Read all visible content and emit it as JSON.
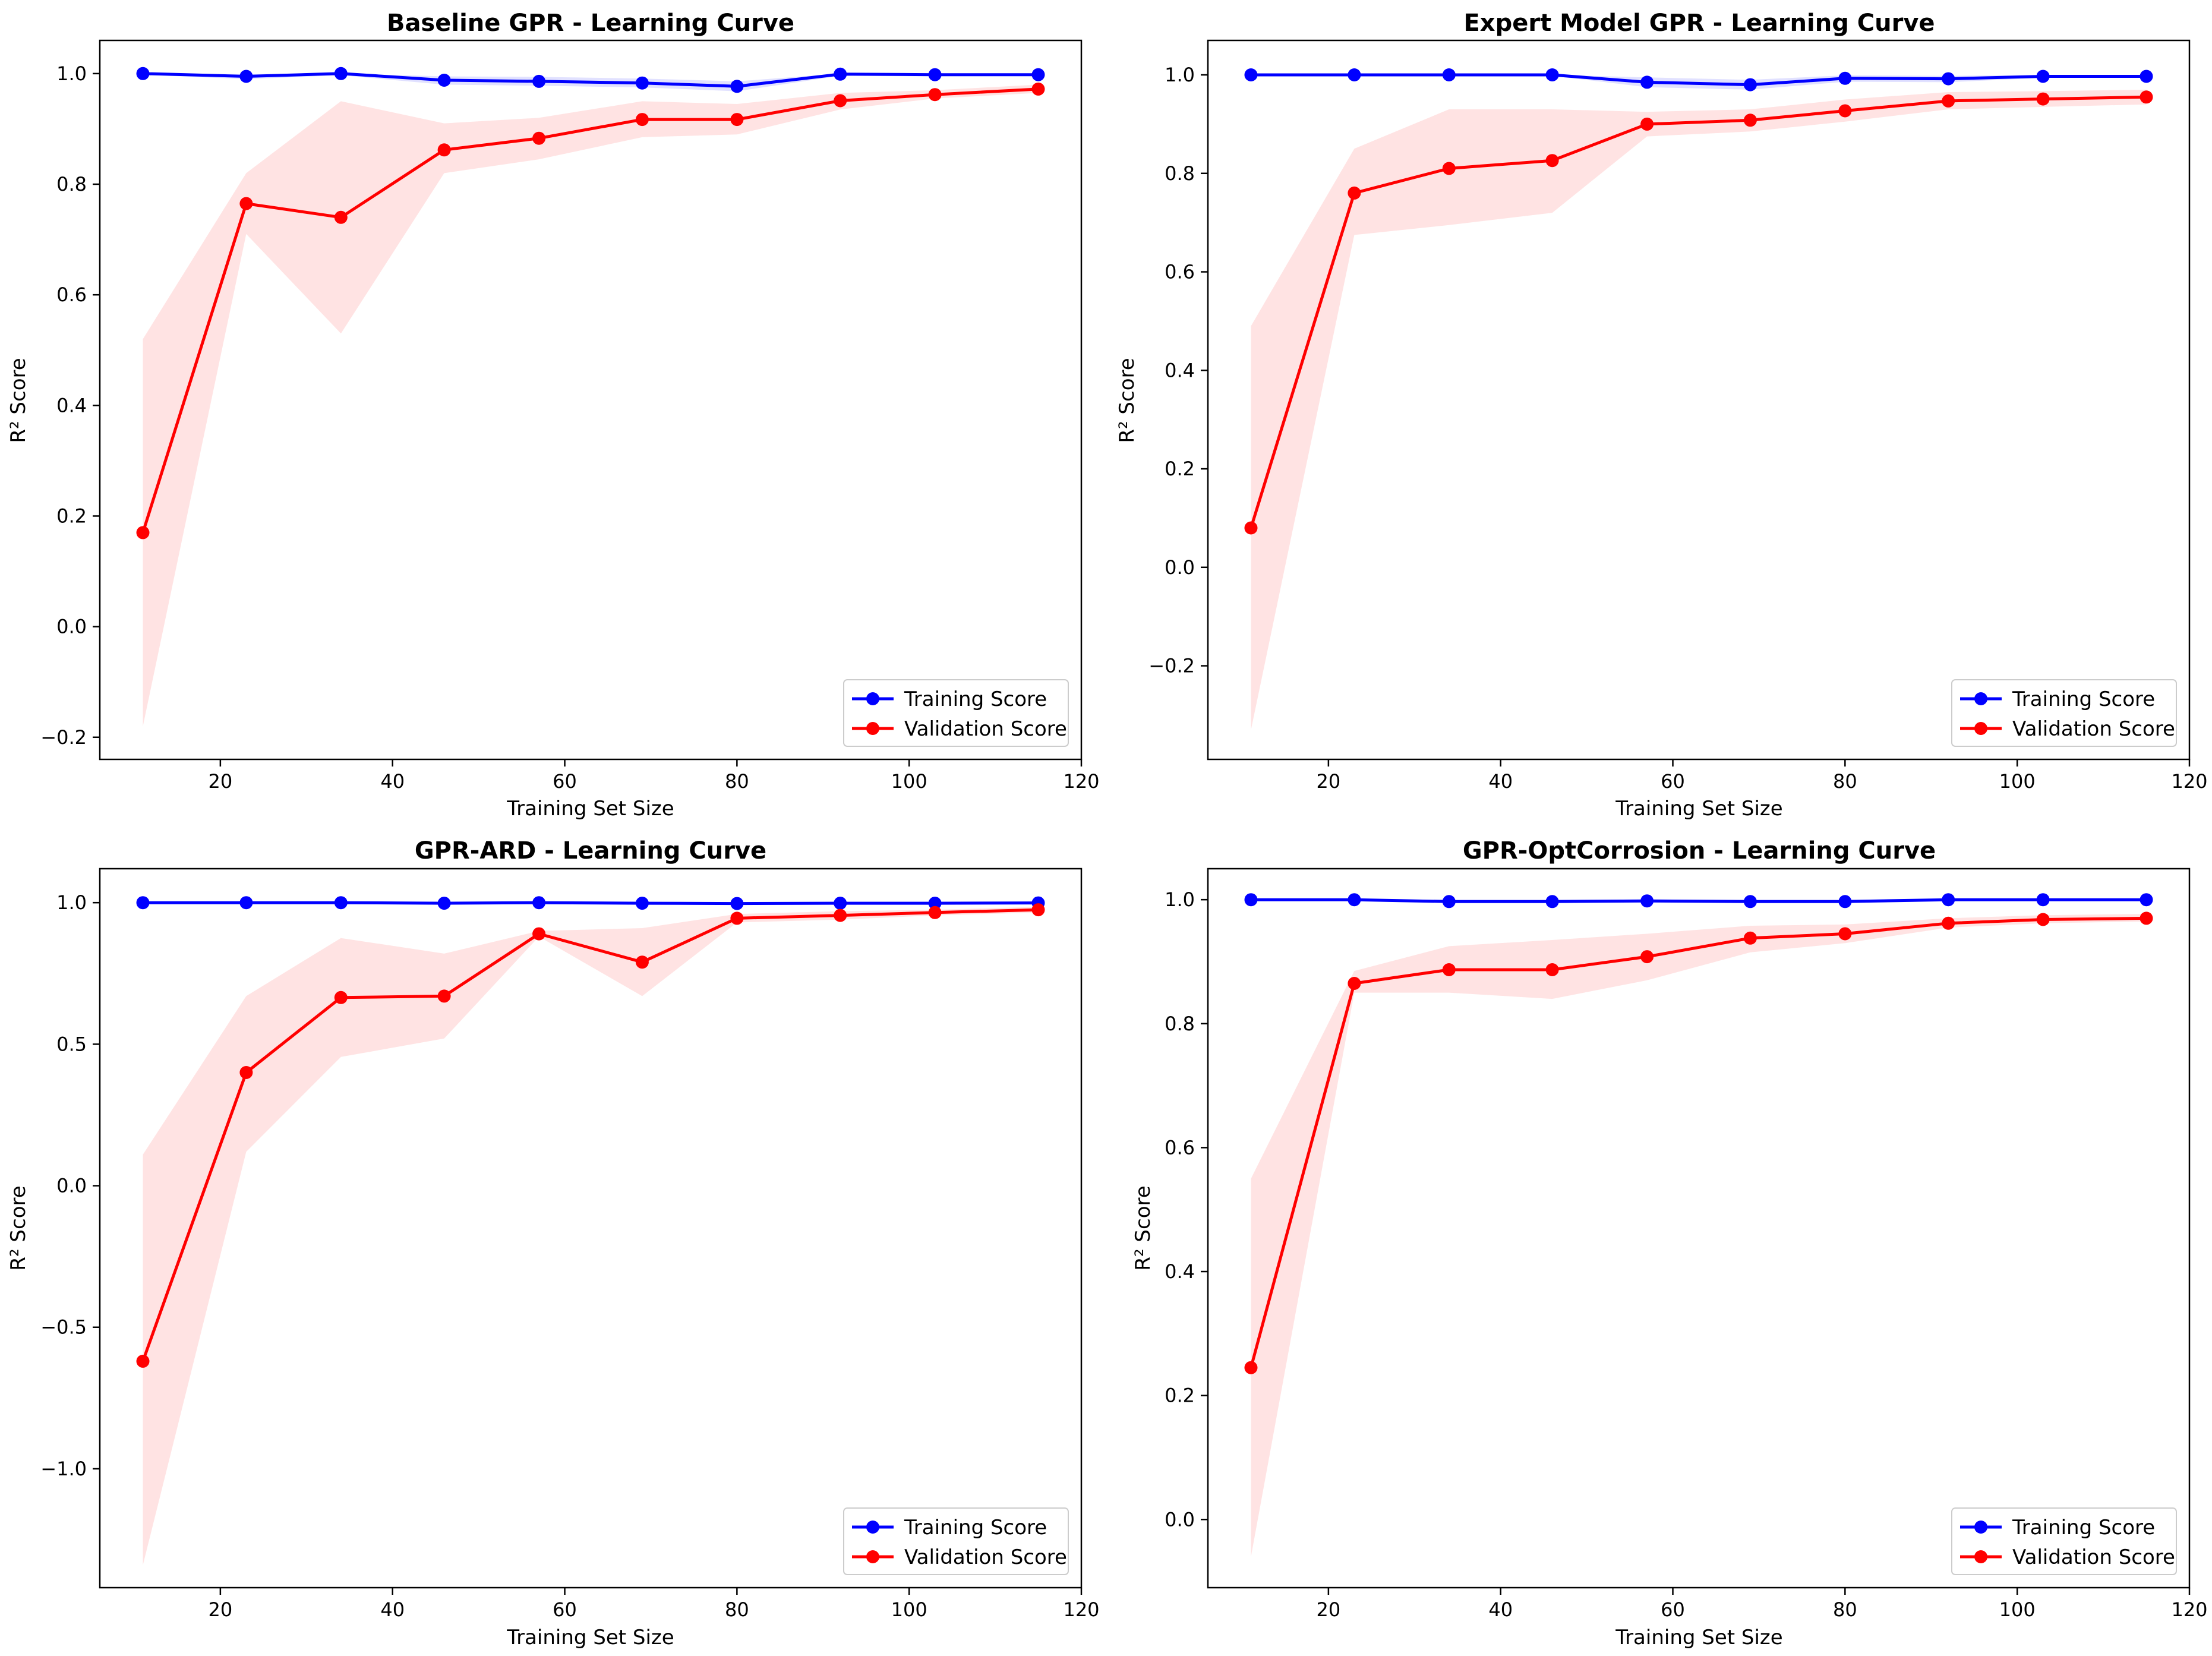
{
  "figure": {
    "background": "#ffffff"
  },
  "colors": {
    "training": "#0000ff",
    "validation": "#ff0000",
    "training_band": "#c8c8ff",
    "validation_band": "#ffc8c8"
  },
  "chart_data": [
    {
      "type": "line",
      "title": "Baseline GPR - Learning Curve",
      "xlabel": "Training Set Size",
      "ylabel": "R² Score",
      "xlim": [
        6,
        120
      ],
      "ylim": [
        -0.24,
        1.06
      ],
      "xticks": [
        20,
        40,
        60,
        80,
        100,
        120
      ],
      "xtick_labels": [
        "20",
        "40",
        "60",
        "80",
        "100",
        "120"
      ],
      "yticks": [
        -0.2,
        0.0,
        0.2,
        0.4,
        0.6,
        0.8,
        1.0
      ],
      "ytick_labels": [
        "−0.2",
        "0.0",
        "0.2",
        "0.4",
        "0.6",
        "0.8",
        "1.0"
      ],
      "legend_location": "lower-right",
      "x": [
        11,
        23,
        34,
        46,
        57,
        69,
        80,
        92,
        103,
        115
      ],
      "series": [
        {
          "name": "Training Score",
          "color": "#0000ff",
          "values": [
            1.0,
            0.995,
            1.0,
            0.988,
            0.986,
            0.983,
            0.977,
            0.999,
            0.998,
            0.998
          ],
          "band_lower": [
            0.998,
            0.99,
            0.997,
            0.98,
            0.978,
            0.975,
            0.968,
            0.996,
            0.995,
            0.996
          ],
          "band_upper": [
            1.0,
            0.999,
            1.0,
            0.995,
            0.994,
            0.991,
            0.986,
            1.0,
            1.0,
            1.0
          ]
        },
        {
          "name": "Validation Score",
          "color": "#ff0000",
          "values": [
            0.17,
            0.765,
            0.74,
            0.862,
            0.883,
            0.917,
            0.917,
            0.951,
            0.962,
            0.972
          ],
          "band_lower": [
            -0.18,
            0.71,
            0.53,
            0.82,
            0.845,
            0.885,
            0.89,
            0.935,
            0.955,
            0.965
          ],
          "band_upper": [
            0.52,
            0.82,
            0.95,
            0.91,
            0.92,
            0.95,
            0.945,
            0.965,
            0.97,
            0.98
          ]
        }
      ]
    },
    {
      "type": "line",
      "title": "Expert Model GPR - Learning Curve",
      "xlabel": "Training Set Size",
      "ylabel": "R² Score",
      "xlim": [
        6,
        120
      ],
      "ylim": [
        -0.39,
        1.07
      ],
      "xticks": [
        20,
        40,
        60,
        80,
        100,
        120
      ],
      "xtick_labels": [
        "20",
        "40",
        "60",
        "80",
        "100",
        "120"
      ],
      "yticks": [
        -0.2,
        0.0,
        0.2,
        0.4,
        0.6,
        0.8,
        1.0
      ],
      "ytick_labels": [
        "−0.2",
        "0.0",
        "0.2",
        "0.4",
        "0.6",
        "0.8",
        "1.0"
      ],
      "legend_location": "lower-right",
      "x": [
        11,
        23,
        34,
        46,
        57,
        69,
        80,
        92,
        103,
        115
      ],
      "series": [
        {
          "name": "Training Score",
          "color": "#0000ff",
          "values": [
            1.0,
            1.0,
            1.0,
            1.0,
            0.985,
            0.98,
            0.993,
            0.992,
            0.997,
            0.997
          ],
          "band_lower": [
            0.998,
            0.998,
            0.998,
            0.998,
            0.975,
            0.97,
            0.986,
            0.985,
            0.994,
            0.994
          ],
          "band_upper": [
            1.0,
            1.0,
            1.0,
            1.0,
            0.995,
            0.99,
            0.999,
            0.998,
            1.0,
            1.0
          ]
        },
        {
          "name": "Validation Score",
          "color": "#ff0000",
          "values": [
            0.08,
            0.76,
            0.81,
            0.826,
            0.9,
            0.908,
            0.927,
            0.947,
            0.951,
            0.955
          ],
          "band_lower": [
            -0.33,
            0.675,
            0.695,
            0.72,
            0.875,
            0.885,
            0.905,
            0.93,
            0.935,
            0.94
          ],
          "band_upper": [
            0.49,
            0.85,
            0.93,
            0.93,
            0.925,
            0.93,
            0.95,
            0.965,
            0.967,
            0.97
          ]
        }
      ]
    },
    {
      "type": "line",
      "title": "GPR-ARD - Learning Curve",
      "xlabel": "Training Set Size",
      "ylabel": "R² Score",
      "xlim": [
        6,
        120
      ],
      "ylim": [
        -1.42,
        1.12
      ],
      "xticks": [
        20,
        40,
        60,
        80,
        100,
        120
      ],
      "xtick_labels": [
        "20",
        "40",
        "60",
        "80",
        "100",
        "120"
      ],
      "yticks": [
        -1.0,
        -0.5,
        0.0,
        0.5,
        1.0
      ],
      "ytick_labels": [
        "−1.0",
        "−0.5",
        "0.0",
        "0.5",
        "1.0"
      ],
      "legend_location": "lower-right",
      "x": [
        11,
        23,
        34,
        46,
        57,
        69,
        80,
        92,
        103,
        115
      ],
      "series": [
        {
          "name": "Training Score",
          "color": "#0000ff",
          "values": [
            1.0,
            1.0,
            1.0,
            0.998,
            1.0,
            0.998,
            0.997,
            0.998,
            0.998,
            0.999
          ],
          "band_lower": [
            0.998,
            0.998,
            0.998,
            0.995,
            0.998,
            0.995,
            0.994,
            0.995,
            0.996,
            0.997
          ],
          "band_upper": [
            1.0,
            1.0,
            1.0,
            1.0,
            1.0,
            1.0,
            1.0,
            1.0,
            1.0,
            1.0
          ]
        },
        {
          "name": "Validation Score",
          "color": "#ff0000",
          "values": [
            -0.62,
            0.4,
            0.665,
            0.67,
            0.89,
            0.79,
            0.945,
            0.955,
            0.965,
            0.975
          ],
          "band_lower": [
            -1.34,
            0.12,
            0.455,
            0.52,
            0.88,
            0.67,
            0.93,
            0.94,
            0.955,
            0.965
          ],
          "band_upper": [
            0.11,
            0.67,
            0.875,
            0.82,
            0.9,
            0.91,
            0.96,
            0.97,
            0.975,
            0.985
          ]
        }
      ]
    },
    {
      "type": "line",
      "title": "GPR-OptCorrosion - Learning Curve",
      "xlabel": "Training Set Size",
      "ylabel": "R² Score",
      "xlim": [
        6,
        120
      ],
      "ylim": [
        -0.11,
        1.05
      ],
      "xticks": [
        20,
        40,
        60,
        80,
        100,
        120
      ],
      "xtick_labels": [
        "20",
        "40",
        "60",
        "80",
        "100",
        "120"
      ],
      "yticks": [
        0.0,
        0.2,
        0.4,
        0.6,
        0.8,
        1.0
      ],
      "ytick_labels": [
        "0.0",
        "0.2",
        "0.4",
        "0.6",
        "0.8",
        "1.0"
      ],
      "legend_location": "lower-right",
      "x": [
        11,
        23,
        34,
        46,
        57,
        69,
        80,
        92,
        103,
        115
      ],
      "series": [
        {
          "name": "Training Score",
          "color": "#0000ff",
          "values": [
            1.0,
            1.0,
            0.997,
            0.997,
            0.998,
            0.997,
            0.997,
            1.0,
            1.0,
            1.0
          ],
          "band_lower": [
            0.998,
            0.998,
            0.994,
            0.994,
            0.995,
            0.994,
            0.994,
            0.998,
            0.998,
            0.998
          ],
          "band_upper": [
            1.0,
            1.0,
            1.0,
            1.0,
            1.0,
            1.0,
            1.0,
            1.0,
            1.0,
            1.0
          ]
        },
        {
          "name": "Validation Score",
          "color": "#ff0000",
          "values": [
            0.245,
            0.865,
            0.887,
            0.887,
            0.908,
            0.938,
            0.945,
            0.962,
            0.968,
            0.97
          ],
          "band_lower": [
            -0.06,
            0.85,
            0.85,
            0.84,
            0.87,
            0.915,
            0.93,
            0.955,
            0.962,
            0.965
          ],
          "band_upper": [
            0.55,
            0.885,
            0.925,
            0.935,
            0.945,
            0.958,
            0.96,
            0.97,
            0.975,
            0.977
          ]
        }
      ]
    }
  ]
}
